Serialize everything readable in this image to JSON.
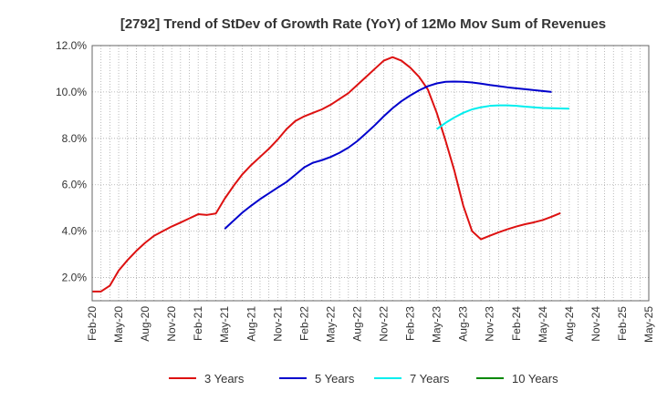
{
  "chart_data": {
    "type": "line",
    "title": "[2792]  Trend of StDev of Growth Rate (YoY) of 12Mo Mov Sum of Revenues",
    "xlabel": "",
    "ylabel": "",
    "ylim": [
      1.0,
      12.0
    ],
    "yticks": [
      2.0,
      4.0,
      6.0,
      8.0,
      10.0,
      12.0
    ],
    "ytick_labels": [
      "2.0%",
      "4.0%",
      "6.0%",
      "8.0%",
      "10.0%",
      "12.0%"
    ],
    "x_start": "Feb-20",
    "x_end": "May-25",
    "xtick_labels": [
      "Feb-20",
      "May-20",
      "Aug-20",
      "Nov-20",
      "Feb-21",
      "May-21",
      "Aug-21",
      "Nov-21",
      "Feb-22",
      "May-22",
      "Aug-22",
      "Nov-22",
      "Feb-23",
      "May-23",
      "Aug-23",
      "Nov-23",
      "Feb-24",
      "May-24",
      "Aug-24",
      "Nov-24",
      "Feb-25",
      "May-25"
    ],
    "grid": true,
    "legend_position": "bottom",
    "series": [
      {
        "name": "3 Years",
        "color": "#dd1111",
        "start_index": 0,
        "values": [
          1.4,
          1.4,
          1.65,
          2.3,
          2.75,
          3.15,
          3.5,
          3.8,
          4.0,
          4.2,
          4.37,
          4.55,
          4.73,
          4.7,
          4.76,
          5.4,
          5.95,
          6.45,
          6.85,
          7.2,
          7.55,
          7.95,
          8.4,
          8.75,
          8.95,
          9.1,
          9.25,
          9.45,
          9.7,
          9.95,
          10.3,
          10.65,
          11.0,
          11.35,
          11.5,
          11.35,
          11.05,
          10.65,
          10.1,
          9.1,
          7.9,
          6.6,
          5.1,
          4.0,
          3.65,
          3.8,
          3.95,
          4.08,
          4.2,
          4.3,
          4.38,
          4.48,
          4.62,
          4.78
        ]
      },
      {
        "name": "5 Years",
        "color": "#0000cc",
        "start_index": 15,
        "values": [
          4.1,
          4.45,
          4.8,
          5.1,
          5.38,
          5.63,
          5.88,
          6.12,
          6.43,
          6.75,
          6.95,
          7.06,
          7.2,
          7.38,
          7.6,
          7.88,
          8.22,
          8.57,
          8.95,
          9.3,
          9.6,
          9.85,
          10.07,
          10.25,
          10.37,
          10.44,
          10.45,
          10.44,
          10.41,
          10.36,
          10.3,
          10.25,
          10.2,
          10.16,
          10.12,
          10.08,
          10.04,
          10.0
        ]
      },
      {
        "name": "7 Years",
        "color": "#00eeee",
        "start_index": 39,
        "values": [
          8.4,
          8.67,
          8.9,
          9.1,
          9.25,
          9.34,
          9.4,
          9.42,
          9.42,
          9.4,
          9.37,
          9.34,
          9.31,
          9.3,
          9.29,
          9.28
        ]
      },
      {
        "name": "10 Years",
        "color": "#008800",
        "start_index": 0,
        "values": []
      }
    ]
  }
}
